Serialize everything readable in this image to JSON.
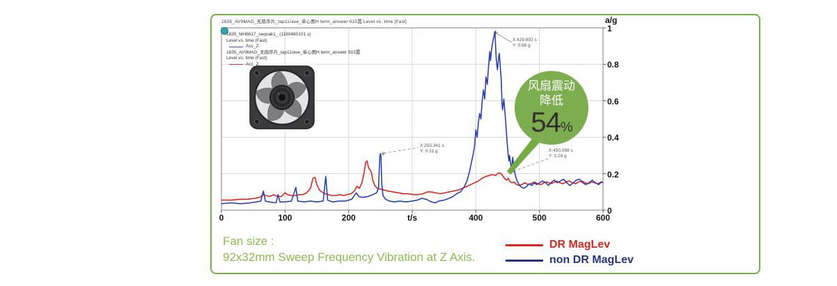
{
  "panel": {
    "border_color": "#74B045",
    "background": "#ffffff"
  },
  "chart": {
    "title": "1835_AV9MAG_无扇序片_tap11/ave_单心图H term_answer 015置   Level vs. time [Fast]",
    "y_axis": {
      "unit": "a/g",
      "tick_labels": [
        "1",
        "0.8",
        "0.6",
        "0.4",
        "0.2",
        "0"
      ]
    },
    "x_axis": {
      "unit": "t/s",
      "tick_labels": [
        "0",
        "100",
        "200",
        "t/s",
        "400",
        "500",
        "600"
      ]
    },
    "inplot_legend": [
      {
        "swatch": null,
        "text": "1835_MH8617_seqnak1_ (1180480101 s)"
      },
      {
        "swatch": null,
        "text": "Level vs. time (Fast)"
      },
      {
        "swatch": "#4450CC",
        "text": "Acc_Z"
      },
      {
        "swatch": null,
        "text": "1835_AV9MAG_无扇序片_tap11/ave_单心图H term_answer 915置"
      },
      {
        "swatch": null,
        "text": "Level vs. time (Fast)"
      },
      {
        "swatch": "#E2362C",
        "text": "Acc_Z"
      }
    ],
    "annotations": [
      {
        "line1": "X:429.892 s",
        "line2": "Y: 0.98 g"
      },
      {
        "line1": "X:250.341 s",
        "line2": "Y: 0.31 g"
      },
      {
        "line1": "X:450.098 s",
        "line2": "Y: 0.29 g"
      }
    ]
  },
  "chart_data": {
    "type": "line",
    "title": "1835 sweep frequency vibration — Level vs. time [Fast]",
    "xlabel": "t/s",
    "ylabel": "a/g",
    "xlim": [
      0,
      600
    ],
    "ylim": [
      0,
      1
    ],
    "xticks": [
      0,
      100,
      200,
      300,
      400,
      500,
      600
    ],
    "yticks": [
      0,
      0.2,
      0.4,
      0.6,
      0.8,
      1
    ],
    "grid": true,
    "legend_position": "bottom-right",
    "peaks": [
      {
        "series": "non DR MagLev",
        "x": 429.892,
        "y": 0.98
      },
      {
        "series": "non DR MagLev",
        "x": 250.341,
        "y": 0.31
      },
      {
        "series": "non DR MagLev",
        "x": 450.098,
        "y": 0.29
      }
    ],
    "series": [
      {
        "name": "DR MagLev",
        "color": "#E2231A",
        "points": [
          [
            0,
            0.055
          ],
          [
            15,
            0.055
          ],
          [
            30,
            0.06
          ],
          [
            42,
            0.06
          ],
          [
            52,
            0.065
          ],
          [
            60,
            0.07
          ],
          [
            66,
            0.085
          ],
          [
            70,
            0.08
          ],
          [
            76,
            0.075
          ],
          [
            82,
            0.085
          ],
          [
            88,
            0.075
          ],
          [
            94,
            0.075
          ],
          [
            100,
            0.095
          ],
          [
            104,
            0.085
          ],
          [
            110,
            0.08
          ],
          [
            116,
            0.08
          ],
          [
            122,
            0.085
          ],
          [
            128,
            0.085
          ],
          [
            134,
            0.095
          ],
          [
            140,
            0.12
          ],
          [
            144,
            0.175
          ],
          [
            147,
            0.18
          ],
          [
            150,
            0.14
          ],
          [
            154,
            0.11
          ],
          [
            158,
            0.1
          ],
          [
            163,
            0.09
          ],
          [
            168,
            0.085
          ],
          [
            174,
            0.08
          ],
          [
            180,
            0.08
          ],
          [
            186,
            0.085
          ],
          [
            192,
            0.08
          ],
          [
            198,
            0.085
          ],
          [
            204,
            0.09
          ],
          [
            209,
            0.105
          ],
          [
            213,
            0.13
          ],
          [
            217,
            0.12
          ],
          [
            221,
            0.15
          ],
          [
            224,
            0.2
          ],
          [
            227,
            0.265
          ],
          [
            229,
            0.27
          ],
          [
            231,
            0.235
          ],
          [
            234,
            0.22
          ],
          [
            236,
            0.205
          ],
          [
            238,
            0.165
          ],
          [
            241,
            0.135
          ],
          [
            245,
            0.12
          ],
          [
            250,
            0.115
          ],
          [
            256,
            0.11
          ],
          [
            262,
            0.105
          ],
          [
            270,
            0.1
          ],
          [
            278,
            0.095
          ],
          [
            286,
            0.09
          ],
          [
            294,
            0.09
          ],
          [
            302,
            0.085
          ],
          [
            310,
            0.085
          ],
          [
            317,
            0.09
          ],
          [
            324,
            0.1
          ],
          [
            330,
            0.1
          ],
          [
            337,
            0.095
          ],
          [
            344,
            0.09
          ],
          [
            351,
            0.095
          ],
          [
            358,
            0.1
          ],
          [
            365,
            0.105
          ],
          [
            372,
            0.11
          ],
          [
            379,
            0.12
          ],
          [
            386,
            0.13
          ],
          [
            392,
            0.14
          ],
          [
            398,
            0.15
          ],
          [
            404,
            0.16
          ],
          [
            410,
            0.175
          ],
          [
            416,
            0.185
          ],
          [
            421,
            0.19
          ],
          [
            426,
            0.195
          ],
          [
            431,
            0.19
          ],
          [
            436,
            0.205
          ],
          [
            440,
            0.2
          ],
          [
            443,
            0.185
          ],
          [
            446,
            0.17
          ],
          [
            449,
            0.165
          ],
          [
            451,
            0.175
          ],
          [
            454,
            0.155
          ],
          [
            457,
            0.15
          ],
          [
            460,
            0.155
          ],
          [
            464,
            0.14
          ],
          [
            468,
            0.135
          ],
          [
            472,
            0.14
          ],
          [
            477,
            0.15
          ],
          [
            482,
            0.14
          ],
          [
            487,
            0.145
          ],
          [
            492,
            0.155
          ],
          [
            497,
            0.145
          ],
          [
            502,
            0.14
          ],
          [
            507,
            0.15
          ],
          [
            512,
            0.155
          ],
          [
            517,
            0.145
          ],
          [
            522,
            0.15
          ],
          [
            527,
            0.16
          ],
          [
            532,
            0.15
          ],
          [
            537,
            0.145
          ],
          [
            542,
            0.155
          ],
          [
            547,
            0.16
          ],
          [
            552,
            0.15
          ],
          [
            557,
            0.145
          ],
          [
            562,
            0.155
          ],
          [
            567,
            0.16
          ],
          [
            572,
            0.15
          ],
          [
            577,
            0.145
          ],
          [
            582,
            0.155
          ],
          [
            587,
            0.15
          ],
          [
            592,
            0.145
          ],
          [
            597,
            0.155
          ],
          [
            600,
            0.15
          ]
        ]
      },
      {
        "name": "non DR MagLev",
        "color": "#2840B8",
        "points": [
          [
            0,
            0.035
          ],
          [
            15,
            0.04
          ],
          [
            30,
            0.035
          ],
          [
            45,
            0.04
          ],
          [
            55,
            0.045
          ],
          [
            62,
            0.05
          ],
          [
            66,
            0.105
          ],
          [
            69,
            0.05
          ],
          [
            75,
            0.045
          ],
          [
            86,
            0.04
          ],
          [
            89,
            0.085
          ],
          [
            92,
            0.045
          ],
          [
            100,
            0.045
          ],
          [
            110,
            0.05
          ],
          [
            117,
            0.125
          ],
          [
            120,
            0.05
          ],
          [
            130,
            0.045
          ],
          [
            140,
            0.05
          ],
          [
            150,
            0.045
          ],
          [
            160,
            0.05
          ],
          [
            164,
            0.185
          ],
          [
            167,
            0.055
          ],
          [
            175,
            0.045
          ],
          [
            185,
            0.05
          ],
          [
            195,
            0.05
          ],
          [
            205,
            0.06
          ],
          [
            212,
            0.095
          ],
          [
            216,
            0.075
          ],
          [
            222,
            0.07
          ],
          [
            230,
            0.075
          ],
          [
            238,
            0.085
          ],
          [
            244,
            0.095
          ],
          [
            247,
            0.12
          ],
          [
            249,
            0.29
          ],
          [
            250,
            0.31
          ],
          [
            251,
            0.29
          ],
          [
            252,
            0.15
          ],
          [
            254,
            0.08
          ],
          [
            258,
            0.06
          ],
          [
            264,
            0.05
          ],
          [
            272,
            0.045
          ],
          [
            280,
            0.05
          ],
          [
            290,
            0.045
          ],
          [
            300,
            0.05
          ],
          [
            308,
            0.055
          ],
          [
            315,
            0.065
          ],
          [
            322,
            0.06
          ],
          [
            330,
            0.045
          ],
          [
            336,
            0.04
          ],
          [
            342,
            0.05
          ],
          [
            350,
            0.055
          ],
          [
            358,
            0.065
          ],
          [
            364,
            0.075
          ],
          [
            370,
            0.09
          ],
          [
            376,
            0.1
          ],
          [
            382,
            0.13
          ],
          [
            386,
            0.16
          ],
          [
            390,
            0.21
          ],
          [
            393,
            0.26
          ],
          [
            396,
            0.31
          ],
          [
            398,
            0.35
          ],
          [
            400,
            0.44
          ],
          [
            402,
            0.4
          ],
          [
            404,
            0.48
          ],
          [
            406,
            0.53
          ],
          [
            408,
            0.5
          ],
          [
            410,
            0.6
          ],
          [
            412,
            0.66
          ],
          [
            414,
            0.61
          ],
          [
            416,
            0.73
          ],
          [
            418,
            0.69
          ],
          [
            420,
            0.79
          ],
          [
            422,
            0.87
          ],
          [
            423,
            0.82
          ],
          [
            425,
            0.89
          ],
          [
            427,
            0.93
          ],
          [
            429,
            0.96
          ],
          [
            430,
            0.98
          ],
          [
            431,
            0.91
          ],
          [
            432,
            0.83
          ],
          [
            434,
            0.77
          ],
          [
            436,
            0.84
          ],
          [
            437,
            0.86
          ],
          [
            438,
            0.81
          ],
          [
            440,
            0.71
          ],
          [
            441,
            0.59
          ],
          [
            442,
            0.55
          ],
          [
            444,
            0.61
          ],
          [
            445,
            0.57
          ],
          [
            447,
            0.48
          ],
          [
            449,
            0.38
          ],
          [
            451,
            0.3
          ],
          [
            452,
            0.27
          ],
          [
            453,
            0.3
          ],
          [
            455,
            0.25
          ],
          [
            456,
            0.22
          ],
          [
            458,
            0.29
          ],
          [
            459,
            0.26
          ],
          [
            461,
            0.21
          ],
          [
            463,
            0.18
          ],
          [
            465,
            0.16
          ],
          [
            468,
            0.14
          ],
          [
            472,
            0.125
          ],
          [
            476,
            0.12
          ],
          [
            480,
            0.13
          ],
          [
            484,
            0.145
          ],
          [
            488,
            0.135
          ],
          [
            492,
            0.15
          ],
          [
            496,
            0.14
          ],
          [
            500,
            0.15
          ],
          [
            505,
            0.16
          ],
          [
            510,
            0.15
          ],
          [
            514,
            0.135
          ],
          [
            518,
            0.15
          ],
          [
            523,
            0.165
          ],
          [
            528,
            0.15
          ],
          [
            533,
            0.16
          ],
          [
            538,
            0.17
          ],
          [
            543,
            0.15
          ],
          [
            548,
            0.135
          ],
          [
            553,
            0.15
          ],
          [
            558,
            0.165
          ],
          [
            563,
            0.17
          ],
          [
            568,
            0.15
          ],
          [
            573,
            0.14
          ],
          [
            578,
            0.15
          ],
          [
            583,
            0.165
          ],
          [
            588,
            0.15
          ],
          [
            593,
            0.14
          ],
          [
            598,
            0.155
          ],
          [
            600,
            0.15
          ]
        ]
      }
    ]
  },
  "badge": {
    "bg": "#7CAE4F",
    "line1": "风扇震动",
    "line2": "降低",
    "value": "54",
    "unit": "%"
  },
  "caption": {
    "line1": "Fan size :",
    "line2": "92x32mm Sweep Frequency Vibration at Z Axis.",
    "color": "#8CBB4E"
  },
  "legend": {
    "items": [
      {
        "label": "DR MagLev",
        "color": "#D6281E"
      },
      {
        "label": "non DR MagLev",
        "color": "#27357E"
      }
    ]
  },
  "fan_image": {
    "alt": "black axial cooling fan product photo"
  }
}
